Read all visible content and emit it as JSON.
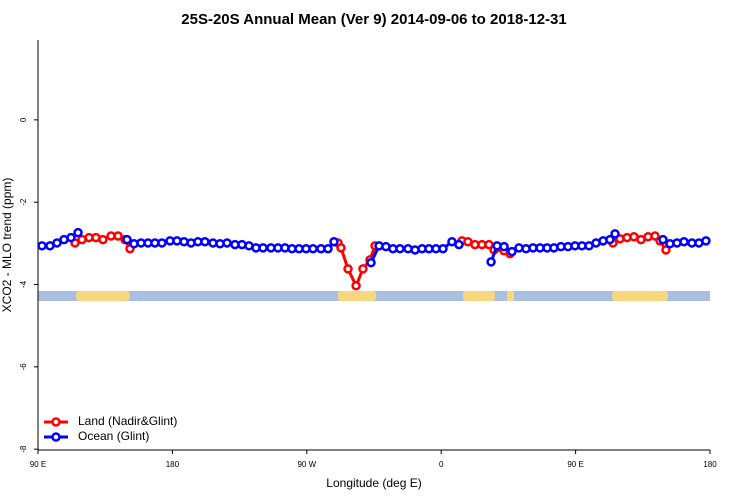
{
  "chart_data": {
    "type": "line",
    "title": "25S-20S Annual Mean (Ver 9)   2014-09-06 to 2018-12-31",
    "x_label": "Longitude (deg E)",
    "y_label": "XCO2 - MLO trend (ppm)",
    "xlim": [
      90,
      540
    ],
    "xticks": [
      {
        "value": 90,
        "label": "90 E"
      },
      {
        "value": 180,
        "label": "180"
      },
      {
        "value": 270,
        "label": "90 W"
      },
      {
        "value": 360,
        "label": "0"
      },
      {
        "value": 450,
        "label": "90 E"
      },
      {
        "value": 540,
        "label": "180"
      }
    ],
    "ylim": [
      -8.02,
      1.94
    ],
    "yticks": [
      0,
      -2,
      -4,
      -6,
      -8
    ],
    "legend": "bottom-left",
    "series": [
      {
        "name": "Land (Nadir&Glint)",
        "color": "#ff0000",
        "x": [
          114.8,
          119.5,
          124.2,
          128.8,
          133.5,
          138.9,
          143.6,
          148.3,
          151.6,
          200,
          290.9,
          292.9,
          297.6,
          303.0,
          307.6,
          312.3,
          315.7,
          340,
          373.9,
          377.9,
          382.6,
          387.3,
          392.0,
          395.4,
          402.1,
          406.1,
          450,
          475.0,
          479.7,
          484.4,
          489.1,
          493.8,
          498.5,
          503.2,
          506.5,
          510.5
        ],
        "values": [
          -2.99,
          -2.91,
          -2.86,
          -2.86,
          -2.91,
          -2.82,
          -2.82,
          -2.91,
          -3.13,
          null,
          -2.99,
          -3.11,
          -3.62,
          -4.03,
          -3.62,
          -3.4,
          -3.06,
          null,
          -2.94,
          -2.96,
          -3.03,
          -3.03,
          -3.03,
          -3.16,
          -3.18,
          -3.25,
          null,
          -2.99,
          -2.89,
          -2.86,
          -2.84,
          -2.91,
          -2.84,
          -2.82,
          -2.94,
          -3.16
        ]
      },
      {
        "name": "Ocean (Glint)",
        "color": "#0000ff",
        "x": [
          92.7,
          98.0,
          102.7,
          107.4,
          112.1,
          116.8,
          130,
          149.6,
          154.3,
          159.0,
          163.7,
          168.3,
          173.0,
          178.4,
          183.1,
          187.8,
          192.5,
          197.1,
          201.8,
          207.2,
          211.9,
          216.6,
          221.9,
          226.6,
          231.3,
          236.0,
          240.7,
          246.0,
          250.7,
          255.4,
          260.1,
          264.8,
          269.5,
          274.2,
          279.5,
          284.2,
          288.2,
          300,
          313.0,
          318.4,
          323.0,
          327.7,
          332.4,
          337.8,
          342.5,
          347.2,
          351.8,
          356.5,
          361.2,
          367.2,
          371.9,
          380,
          393.4,
          397.4,
          402.1,
          407.4,
          412.1,
          416.8,
          421.5,
          426.2,
          430.9,
          435.5,
          440.2,
          444.9,
          449.6,
          454.3,
          459.0,
          463.7,
          468.4,
          473.0,
          476.4,
          490,
          508.5,
          513.2,
          517.9,
          522.6,
          527.9,
          532.6,
          537.3
        ],
        "values": [
          -3.06,
          -3.06,
          -2.99,
          -2.91,
          -2.86,
          -2.74,
          null,
          -2.91,
          -3.01,
          -2.99,
          -2.99,
          -2.99,
          -2.99,
          -2.94,
          -2.94,
          -2.96,
          -2.99,
          -2.96,
          -2.96,
          -2.99,
          -3.01,
          -2.99,
          -3.03,
          -3.03,
          -3.06,
          -3.11,
          -3.11,
          -3.11,
          -3.11,
          -3.11,
          -3.13,
          -3.13,
          -3.13,
          -3.13,
          -3.13,
          -3.13,
          -2.96,
          null,
          -3.47,
          -3.06,
          -3.08,
          -3.13,
          -3.13,
          -3.13,
          -3.16,
          -3.13,
          -3.13,
          -3.13,
          -3.13,
          -2.96,
          -3.03,
          null,
          -3.45,
          -3.06,
          -3.08,
          -3.2,
          -3.11,
          -3.13,
          -3.11,
          -3.11,
          -3.11,
          -3.11,
          -3.08,
          -3.08,
          -3.06,
          -3.06,
          -3.06,
          -2.99,
          -2.94,
          -2.91,
          -2.77,
          null,
          -2.91,
          -3.01,
          -2.99,
          -2.96,
          -2.99,
          -2.99,
          -2.94
        ]
      }
    ]
  }
}
